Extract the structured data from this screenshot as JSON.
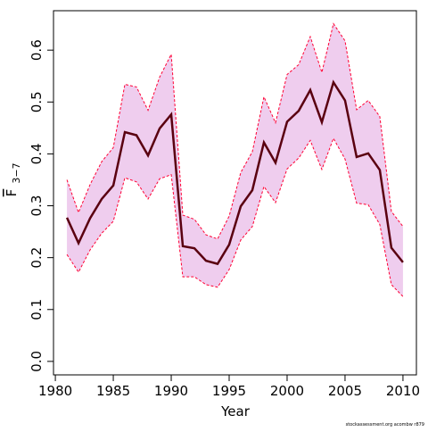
{
  "chart_data": {
    "type": "line",
    "xlabel": "Year",
    "ylabel": {
      "main": "F",
      "subscript": "3−7"
    },
    "footnote": "stockassessment.org acombw r879",
    "x": [
      1981,
      1982,
      1983,
      1984,
      1985,
      1986,
      1987,
      1988,
      1989,
      1990,
      1991,
      1992,
      1993,
      1994,
      1995,
      1996,
      1997,
      1998,
      1999,
      2000,
      2001,
      2002,
      2003,
      2004,
      2005,
      2006,
      2007,
      2008,
      2009,
      2010
    ],
    "values": [
      0.277,
      0.228,
      0.276,
      0.313,
      0.339,
      0.442,
      0.436,
      0.397,
      0.449,
      0.476,
      0.222,
      0.218,
      0.194,
      0.188,
      0.225,
      0.299,
      0.33,
      0.422,
      0.383,
      0.462,
      0.483,
      0.523,
      0.461,
      0.538,
      0.503,
      0.394,
      0.401,
      0.369,
      0.219,
      0.191
    ],
    "upper": [
      0.35,
      0.287,
      0.341,
      0.385,
      0.412,
      0.534,
      0.529,
      0.484,
      0.548,
      0.592,
      0.282,
      0.274,
      0.244,
      0.236,
      0.28,
      0.364,
      0.404,
      0.51,
      0.46,
      0.553,
      0.572,
      0.626,
      0.557,
      0.651,
      0.618,
      0.485,
      0.503,
      0.472,
      0.289,
      0.26
    ],
    "lower": [
      0.206,
      0.172,
      0.215,
      0.247,
      0.27,
      0.354,
      0.346,
      0.313,
      0.352,
      0.36,
      0.163,
      0.163,
      0.148,
      0.143,
      0.177,
      0.234,
      0.26,
      0.337,
      0.306,
      0.371,
      0.392,
      0.426,
      0.37,
      0.43,
      0.39,
      0.305,
      0.302,
      0.264,
      0.148,
      0.125
    ],
    "color": "#5a0010",
    "band_color": "#efcdee",
    "bound_color": "#ff0033",
    "xlim": [
      1979.84,
      2011.16
    ],
    "ylim": [
      -0.026,
      0.676
    ],
    "xticks": [
      1980,
      1985,
      1990,
      1995,
      2000,
      2005,
      2010
    ],
    "yticks": [
      {
        "value": 0,
        "label": "0.0"
      },
      0.1,
      0.2,
      0.3,
      0.4,
      0.5,
      0.6
    ]
  }
}
